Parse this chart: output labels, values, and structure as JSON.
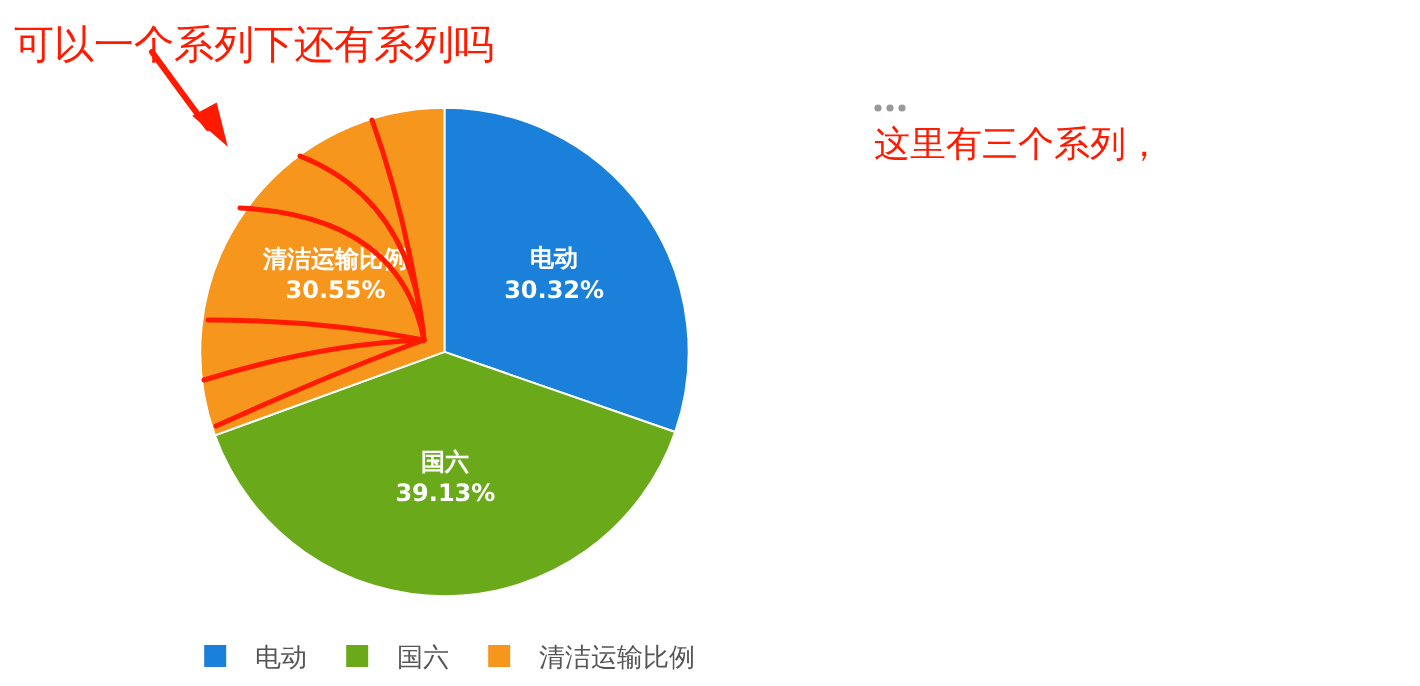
{
  "chart_data": {
    "type": "pie",
    "categories": [
      "电动",
      "国六",
      "清洁运输比例"
    ],
    "values": [
      30.32,
      39.13,
      30.55
    ],
    "colors": [
      "#1a80d9",
      "#6aa91a",
      "#f7961c"
    ],
    "value_labels": [
      "30.32%",
      "39.13%",
      "30.55%"
    ],
    "legend": "bottom",
    "annotations": [
      "可以一个系列下还有系列吗",
      "这里有三个系列，"
    ]
  }
}
